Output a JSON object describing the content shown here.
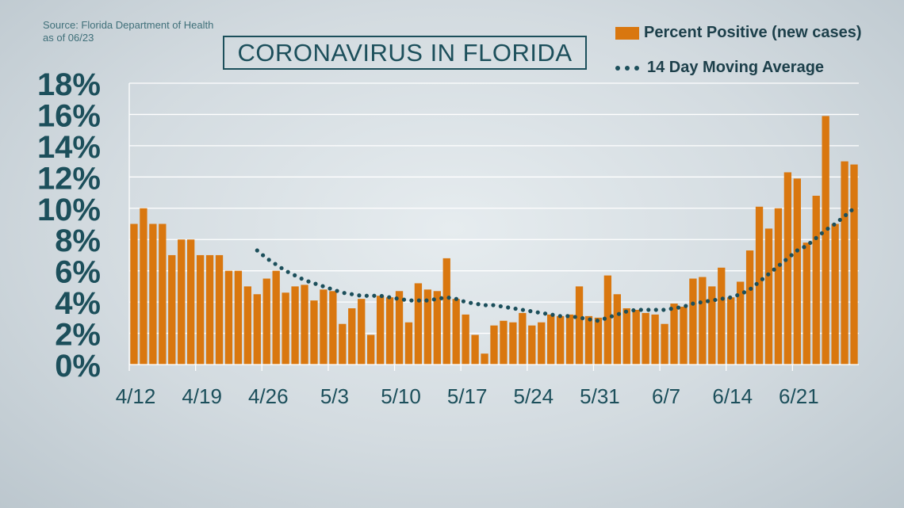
{
  "source": {
    "line1": "Source: Florida Department of Health",
    "line2": "as of 06/23"
  },
  "title": "CORONAVIRUS IN FLORIDA",
  "legend": {
    "bars": "Percent Positive (new cases)",
    "line": "14 Day Moving Average"
  },
  "colors": {
    "bar": "#d9770f",
    "moving_average": "#1c4f5b",
    "axis_text": "#1c4f5b",
    "grid": "#ffffff"
  },
  "chart_data": {
    "type": "bar",
    "ylim": [
      0,
      18
    ],
    "y_ticks": [
      "0%",
      "2%",
      "4%",
      "6%",
      "8%",
      "10%",
      "12%",
      "14%",
      "16%",
      "18%"
    ],
    "x_tick_labels": [
      "4/12",
      "4/19",
      "4/26",
      "5/3",
      "5/10",
      "5/17",
      "5/24",
      "5/31",
      "6/7",
      "6/14",
      "6/21"
    ],
    "grid": true,
    "legend_position": "top-right",
    "series": [
      {
        "name": "Percent Positive (new cases)",
        "type": "bar",
        "values": [
          9.0,
          10.0,
          9.0,
          9.0,
          7.0,
          8.0,
          8.0,
          7.0,
          7.0,
          7.0,
          6.0,
          6.0,
          5.0,
          4.5,
          5.5,
          6.0,
          4.6,
          5.0,
          5.1,
          4.1,
          4.8,
          4.7,
          2.6,
          3.6,
          4.2,
          1.9,
          4.4,
          4.3,
          4.7,
          2.7,
          5.2,
          4.8,
          4.7,
          6.8,
          4.2,
          3.2,
          1.9,
          0.7,
          2.5,
          2.8,
          2.7,
          3.3,
          2.5,
          2.7,
          3.2,
          3.1,
          3.2,
          5.0,
          3.1,
          3.0,
          5.7,
          4.5,
          3.6,
          3.5,
          3.3,
          3.2,
          2.6,
          3.9,
          3.7,
          5.5,
          5.6,
          5.0,
          6.2,
          4.3,
          5.3,
          7.3,
          10.1,
          8.7,
          10.0,
          12.3,
          11.9,
          7.8,
          10.8,
          15.9,
          9.0,
          13.0,
          12.8
        ]
      },
      {
        "name": "14 Day Moving Average",
        "type": "line",
        "style": "dotted",
        "values": [
          null,
          null,
          null,
          null,
          null,
          null,
          null,
          null,
          null,
          null,
          null,
          null,
          null,
          7.3,
          6.8,
          6.4,
          6.0,
          5.7,
          5.4,
          5.2,
          5.0,
          4.8,
          4.6,
          4.5,
          4.4,
          4.4,
          4.4,
          4.3,
          4.2,
          4.1,
          4.1,
          4.1,
          4.2,
          4.3,
          4.2,
          4.0,
          3.9,
          3.8,
          3.8,
          3.7,
          3.6,
          3.5,
          3.4,
          3.3,
          3.2,
          3.1,
          3.1,
          3.0,
          2.9,
          2.8,
          3.0,
          3.2,
          3.4,
          3.5,
          3.5,
          3.5,
          3.5,
          3.6,
          3.7,
          3.9,
          4.0,
          4.1,
          4.2,
          4.3,
          4.5,
          4.8,
          5.3,
          5.8,
          6.3,
          6.8,
          7.3,
          7.6,
          8.1,
          8.6,
          9.0,
          9.5,
          10.0
        ]
      }
    ]
  }
}
